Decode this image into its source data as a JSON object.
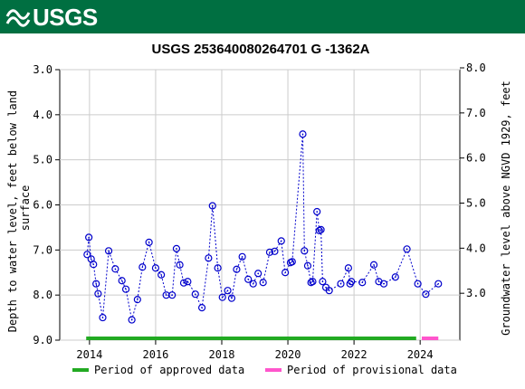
{
  "header": {
    "logo_text": "USGS"
  },
  "chart_data": {
    "type": "scatter",
    "title": "USGS 253640080264701 G  -1362A",
    "ylabel_left": "Depth to water level, feet below land surface",
    "ylabel_right": "Groundwater level above NGVD 1929, feet",
    "xlim": [
      2013.1,
      2025.2
    ],
    "ylim_left": [
      9.0,
      3.0
    ],
    "ylim_right_ticks": [
      3.0,
      4.0,
      5.0,
      6.0,
      7.0,
      8.0
    ],
    "right_offset": 10.96,
    "x_ticks": [
      2014,
      2016,
      2018,
      2020,
      2022,
      2024
    ],
    "y_ticks_left": [
      3.0,
      4.0,
      5.0,
      6.0,
      7.0,
      8.0,
      9.0
    ],
    "grid": true,
    "marker": "circle-dot",
    "series_color": "#0000cc",
    "points": [
      [
        2013.93,
        7.1
      ],
      [
        2013.98,
        6.72
      ],
      [
        2014.05,
        7.2
      ],
      [
        2014.12,
        7.32
      ],
      [
        2014.2,
        7.75
      ],
      [
        2014.26,
        7.97
      ],
      [
        2014.4,
        8.5
      ],
      [
        2014.58,
        7.02
      ],
      [
        2014.78,
        7.42
      ],
      [
        2014.98,
        7.68
      ],
      [
        2015.1,
        7.87
      ],
      [
        2015.28,
        8.55
      ],
      [
        2015.45,
        8.1
      ],
      [
        2015.6,
        7.38
      ],
      [
        2015.8,
        6.83
      ],
      [
        2016.0,
        7.4
      ],
      [
        2016.17,
        7.55
      ],
      [
        2016.32,
        8.0
      ],
      [
        2016.5,
        8.0
      ],
      [
        2016.63,
        6.97
      ],
      [
        2016.73,
        7.33
      ],
      [
        2016.85,
        7.73
      ],
      [
        2016.97,
        7.7
      ],
      [
        2017.2,
        7.98
      ],
      [
        2017.4,
        8.28
      ],
      [
        2017.6,
        7.18
      ],
      [
        2017.72,
        6.02
      ],
      [
        2017.88,
        7.4
      ],
      [
        2018.02,
        8.05
      ],
      [
        2018.18,
        7.9
      ],
      [
        2018.3,
        8.07
      ],
      [
        2018.45,
        7.43
      ],
      [
        2018.62,
        7.15
      ],
      [
        2018.8,
        7.65
      ],
      [
        2018.95,
        7.75
      ],
      [
        2019.1,
        7.52
      ],
      [
        2019.25,
        7.72
      ],
      [
        2019.45,
        7.05
      ],
      [
        2019.6,
        7.03
      ],
      [
        2019.8,
        6.8
      ],
      [
        2019.92,
        7.5
      ],
      [
        2020.08,
        7.28
      ],
      [
        2020.13,
        7.26
      ],
      [
        2020.45,
        4.43
      ],
      [
        2020.5,
        7.02
      ],
      [
        2020.6,
        7.35
      ],
      [
        2020.7,
        7.72
      ],
      [
        2020.75,
        7.7
      ],
      [
        2020.88,
        6.15
      ],
      [
        2020.95,
        6.57
      ],
      [
        2021.0,
        6.55
      ],
      [
        2021.05,
        7.7
      ],
      [
        2021.15,
        7.83
      ],
      [
        2021.25,
        7.9
      ],
      [
        2021.6,
        7.75
      ],
      [
        2021.83,
        7.4
      ],
      [
        2021.88,
        7.75
      ],
      [
        2021.92,
        7.7
      ],
      [
        2022.25,
        7.72
      ],
      [
        2022.6,
        7.33
      ],
      [
        2022.75,
        7.7
      ],
      [
        2022.9,
        7.75
      ],
      [
        2023.25,
        7.6
      ],
      [
        2023.6,
        6.98
      ],
      [
        2023.93,
        7.75
      ],
      [
        2024.17,
        7.98
      ],
      [
        2024.55,
        7.75
      ]
    ],
    "approved_period": {
      "label": "Period of approved data",
      "color": "#22aa22",
      "range": [
        2013.9,
        2023.88
      ]
    },
    "provisional_period": {
      "label": "Period of provisional data",
      "color": "#ff55cc",
      "range": [
        2024.05,
        2024.55
      ]
    }
  }
}
